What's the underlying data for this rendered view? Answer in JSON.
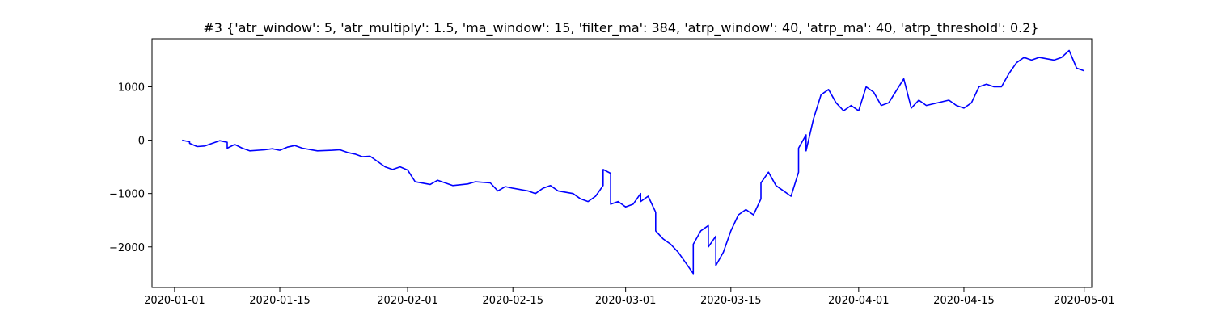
{
  "chart_data": {
    "type": "line",
    "title": "#3 {'atr_window': 5, 'atr_multiply': 1.5, 'ma_window': 15, 'filter_ma': 384, 'atrp_window': 40, 'atrp_ma': 40, 'atrp_threshold': 0.2}",
    "xlabel": "",
    "ylabel": "",
    "x_type": "date",
    "xlim": [
      "2019-12-29",
      "2020-05-02"
    ],
    "ylim": [
      -2760,
      1900
    ],
    "grid": false,
    "x_ticks": [
      {
        "value": "2020-01-01",
        "label": "2020-01-01"
      },
      {
        "value": "2020-01-15",
        "label": "2020-01-15"
      },
      {
        "value": "2020-02-01",
        "label": "2020-02-01"
      },
      {
        "value": "2020-02-15",
        "label": "2020-02-15"
      },
      {
        "value": "2020-03-01",
        "label": "2020-03-01"
      },
      {
        "value": "2020-03-15",
        "label": "2020-03-15"
      },
      {
        "value": "2020-04-01",
        "label": "2020-04-01"
      },
      {
        "value": "2020-04-15",
        "label": "2020-04-15"
      },
      {
        "value": "2020-05-01",
        "label": "2020-05-01"
      }
    ],
    "y_ticks": [
      {
        "value": -2000,
        "label": "−2000"
      },
      {
        "value": -1000,
        "label": "−1000"
      },
      {
        "value": 0,
        "label": "0"
      },
      {
        "value": 1000,
        "label": "1000"
      }
    ],
    "series": [
      {
        "color": "#0000ff",
        "points": [
          [
            "2020-01-02",
            0
          ],
          [
            "2020-01-03",
            -30
          ],
          [
            "2020-01-03",
            -60
          ],
          [
            "2020-01-04",
            -120
          ],
          [
            "2020-01-05",
            -110
          ],
          [
            "2020-01-06",
            -60
          ],
          [
            "2020-01-07",
            -10
          ],
          [
            "2020-01-08",
            -40
          ],
          [
            "2020-01-08",
            -150
          ],
          [
            "2020-01-09",
            -80
          ],
          [
            "2020-01-10",
            -150
          ],
          [
            "2020-01-11",
            -200
          ],
          [
            "2020-01-13",
            -180
          ],
          [
            "2020-01-14",
            -160
          ],
          [
            "2020-01-15",
            -190
          ],
          [
            "2020-01-16",
            -130
          ],
          [
            "2020-01-17",
            -100
          ],
          [
            "2020-01-18",
            -150
          ],
          [
            "2020-01-20",
            -200
          ],
          [
            "2020-01-22",
            -190
          ],
          [
            "2020-01-23",
            -180
          ],
          [
            "2020-01-24",
            -230
          ],
          [
            "2020-01-25",
            -260
          ],
          [
            "2020-01-26",
            -310
          ],
          [
            "2020-01-27",
            -300
          ],
          [
            "2020-01-28",
            -400
          ],
          [
            "2020-01-29",
            -500
          ],
          [
            "2020-01-30",
            -550
          ],
          [
            "2020-01-31",
            -500
          ],
          [
            "2020-02-01",
            -560
          ],
          [
            "2020-02-02",
            -780
          ],
          [
            "2020-02-04",
            -830
          ],
          [
            "2020-02-05",
            -750
          ],
          [
            "2020-02-06",
            -800
          ],
          [
            "2020-02-07",
            -850
          ],
          [
            "2020-02-09",
            -820
          ],
          [
            "2020-02-10",
            -780
          ],
          [
            "2020-02-12",
            -800
          ],
          [
            "2020-02-13",
            -950
          ],
          [
            "2020-02-14",
            -870
          ],
          [
            "2020-02-15",
            -900
          ],
          [
            "2020-02-17",
            -950
          ],
          [
            "2020-02-18",
            -1000
          ],
          [
            "2020-02-19",
            -900
          ],
          [
            "2020-02-20",
            -850
          ],
          [
            "2020-02-21",
            -950
          ],
          [
            "2020-02-23",
            -1000
          ],
          [
            "2020-02-24",
            -1100
          ],
          [
            "2020-02-25",
            -1150
          ],
          [
            "2020-02-26",
            -1050
          ],
          [
            "2020-02-27",
            -850
          ],
          [
            "2020-02-27",
            -550
          ],
          [
            "2020-02-28",
            -620
          ],
          [
            "2020-02-28",
            -1200
          ],
          [
            "2020-02-29",
            -1150
          ],
          [
            "2020-03-01",
            -1250
          ],
          [
            "2020-03-02",
            -1200
          ],
          [
            "2020-03-03",
            -1000
          ],
          [
            "2020-03-03",
            -1150
          ],
          [
            "2020-03-04",
            -1050
          ],
          [
            "2020-03-05",
            -1350
          ],
          [
            "2020-03-05",
            -1700
          ],
          [
            "2020-03-06",
            -1850
          ],
          [
            "2020-03-07",
            -1950
          ],
          [
            "2020-03-08",
            -2100
          ],
          [
            "2020-03-09",
            -2300
          ],
          [
            "2020-03-10",
            -2500
          ],
          [
            "2020-03-10",
            -1950
          ],
          [
            "2020-03-11",
            -1700
          ],
          [
            "2020-03-12",
            -1600
          ],
          [
            "2020-03-12",
            -2000
          ],
          [
            "2020-03-13",
            -1800
          ],
          [
            "2020-03-13",
            -2350
          ],
          [
            "2020-03-14",
            -2100
          ],
          [
            "2020-03-15",
            -1700
          ],
          [
            "2020-03-16",
            -1400
          ],
          [
            "2020-03-17",
            -1300
          ],
          [
            "2020-03-18",
            -1400
          ],
          [
            "2020-03-19",
            -1100
          ],
          [
            "2020-03-19",
            -800
          ],
          [
            "2020-03-20",
            -600
          ],
          [
            "2020-03-21",
            -850
          ],
          [
            "2020-03-23",
            -1050
          ],
          [
            "2020-03-24",
            -600
          ],
          [
            "2020-03-24",
            -150
          ],
          [
            "2020-03-25",
            100
          ],
          [
            "2020-03-25",
            -200
          ],
          [
            "2020-03-26",
            400
          ],
          [
            "2020-03-27",
            850
          ],
          [
            "2020-03-28",
            950
          ],
          [
            "2020-03-29",
            700
          ],
          [
            "2020-03-30",
            550
          ],
          [
            "2020-03-31",
            650
          ],
          [
            "2020-04-01",
            550
          ],
          [
            "2020-04-02",
            1000
          ],
          [
            "2020-04-03",
            900
          ],
          [
            "2020-04-04",
            650
          ],
          [
            "2020-04-05",
            700
          ],
          [
            "2020-04-07",
            1150
          ],
          [
            "2020-04-08",
            600
          ],
          [
            "2020-04-09",
            750
          ],
          [
            "2020-04-10",
            650
          ],
          [
            "2020-04-13",
            750
          ],
          [
            "2020-04-14",
            650
          ],
          [
            "2020-04-15",
            600
          ],
          [
            "2020-04-16",
            700
          ],
          [
            "2020-04-17",
            1000
          ],
          [
            "2020-04-18",
            1050
          ],
          [
            "2020-04-19",
            1000
          ],
          [
            "2020-04-20",
            1000
          ],
          [
            "2020-04-21",
            1250
          ],
          [
            "2020-04-22",
            1450
          ],
          [
            "2020-04-23",
            1550
          ],
          [
            "2020-04-24",
            1500
          ],
          [
            "2020-04-25",
            1550
          ],
          [
            "2020-04-27",
            1500
          ],
          [
            "2020-04-28",
            1550
          ],
          [
            "2020-04-29",
            1680
          ],
          [
            "2020-04-30",
            1350
          ],
          [
            "2020-05-01",
            1300
          ]
        ]
      }
    ]
  }
}
